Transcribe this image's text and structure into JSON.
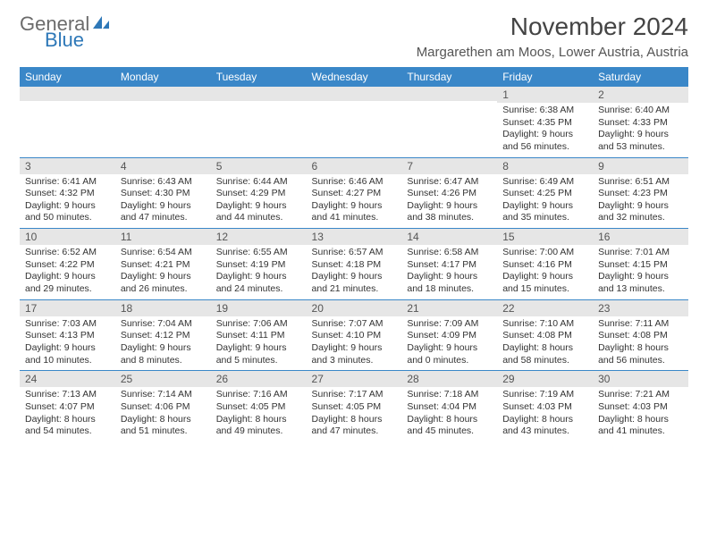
{
  "brand": {
    "general": "General",
    "blue": "Blue"
  },
  "header": {
    "title": "November 2024",
    "location": "Margarethen am Moos, Lower Austria, Austria"
  },
  "theme": {
    "header_bg": "#3a87c8",
    "header_text": "#ffffff",
    "daynum_bg": "#e6e6e6",
    "row_border": "#3a87c8",
    "text_color": "#333333",
    "title_color": "#444444",
    "location_color": "#555555",
    "title_fontsize": 28,
    "location_fontsize": 15,
    "header_fontsize": 12,
    "body_fontsize": 10.5
  },
  "columns": [
    "Sunday",
    "Monday",
    "Tuesday",
    "Wednesday",
    "Thursday",
    "Friday",
    "Saturday"
  ],
  "weeks": [
    [
      {
        "n": "",
        "sunrise": "",
        "sunset": "",
        "daylight": ""
      },
      {
        "n": "",
        "sunrise": "",
        "sunset": "",
        "daylight": ""
      },
      {
        "n": "",
        "sunrise": "",
        "sunset": "",
        "daylight": ""
      },
      {
        "n": "",
        "sunrise": "",
        "sunset": "",
        "daylight": ""
      },
      {
        "n": "",
        "sunrise": "",
        "sunset": "",
        "daylight": ""
      },
      {
        "n": "1",
        "sunrise": "Sunrise: 6:38 AM",
        "sunset": "Sunset: 4:35 PM",
        "daylight": "Daylight: 9 hours and 56 minutes."
      },
      {
        "n": "2",
        "sunrise": "Sunrise: 6:40 AM",
        "sunset": "Sunset: 4:33 PM",
        "daylight": "Daylight: 9 hours and 53 minutes."
      }
    ],
    [
      {
        "n": "3",
        "sunrise": "Sunrise: 6:41 AM",
        "sunset": "Sunset: 4:32 PM",
        "daylight": "Daylight: 9 hours and 50 minutes."
      },
      {
        "n": "4",
        "sunrise": "Sunrise: 6:43 AM",
        "sunset": "Sunset: 4:30 PM",
        "daylight": "Daylight: 9 hours and 47 minutes."
      },
      {
        "n": "5",
        "sunrise": "Sunrise: 6:44 AM",
        "sunset": "Sunset: 4:29 PM",
        "daylight": "Daylight: 9 hours and 44 minutes."
      },
      {
        "n": "6",
        "sunrise": "Sunrise: 6:46 AM",
        "sunset": "Sunset: 4:27 PM",
        "daylight": "Daylight: 9 hours and 41 minutes."
      },
      {
        "n": "7",
        "sunrise": "Sunrise: 6:47 AM",
        "sunset": "Sunset: 4:26 PM",
        "daylight": "Daylight: 9 hours and 38 minutes."
      },
      {
        "n": "8",
        "sunrise": "Sunrise: 6:49 AM",
        "sunset": "Sunset: 4:25 PM",
        "daylight": "Daylight: 9 hours and 35 minutes."
      },
      {
        "n": "9",
        "sunrise": "Sunrise: 6:51 AM",
        "sunset": "Sunset: 4:23 PM",
        "daylight": "Daylight: 9 hours and 32 minutes."
      }
    ],
    [
      {
        "n": "10",
        "sunrise": "Sunrise: 6:52 AM",
        "sunset": "Sunset: 4:22 PM",
        "daylight": "Daylight: 9 hours and 29 minutes."
      },
      {
        "n": "11",
        "sunrise": "Sunrise: 6:54 AM",
        "sunset": "Sunset: 4:21 PM",
        "daylight": "Daylight: 9 hours and 26 minutes."
      },
      {
        "n": "12",
        "sunrise": "Sunrise: 6:55 AM",
        "sunset": "Sunset: 4:19 PM",
        "daylight": "Daylight: 9 hours and 24 minutes."
      },
      {
        "n": "13",
        "sunrise": "Sunrise: 6:57 AM",
        "sunset": "Sunset: 4:18 PM",
        "daylight": "Daylight: 9 hours and 21 minutes."
      },
      {
        "n": "14",
        "sunrise": "Sunrise: 6:58 AM",
        "sunset": "Sunset: 4:17 PM",
        "daylight": "Daylight: 9 hours and 18 minutes."
      },
      {
        "n": "15",
        "sunrise": "Sunrise: 7:00 AM",
        "sunset": "Sunset: 4:16 PM",
        "daylight": "Daylight: 9 hours and 15 minutes."
      },
      {
        "n": "16",
        "sunrise": "Sunrise: 7:01 AM",
        "sunset": "Sunset: 4:15 PM",
        "daylight": "Daylight: 9 hours and 13 minutes."
      }
    ],
    [
      {
        "n": "17",
        "sunrise": "Sunrise: 7:03 AM",
        "sunset": "Sunset: 4:13 PM",
        "daylight": "Daylight: 9 hours and 10 minutes."
      },
      {
        "n": "18",
        "sunrise": "Sunrise: 7:04 AM",
        "sunset": "Sunset: 4:12 PM",
        "daylight": "Daylight: 9 hours and 8 minutes."
      },
      {
        "n": "19",
        "sunrise": "Sunrise: 7:06 AM",
        "sunset": "Sunset: 4:11 PM",
        "daylight": "Daylight: 9 hours and 5 minutes."
      },
      {
        "n": "20",
        "sunrise": "Sunrise: 7:07 AM",
        "sunset": "Sunset: 4:10 PM",
        "daylight": "Daylight: 9 hours and 3 minutes."
      },
      {
        "n": "21",
        "sunrise": "Sunrise: 7:09 AM",
        "sunset": "Sunset: 4:09 PM",
        "daylight": "Daylight: 9 hours and 0 minutes."
      },
      {
        "n": "22",
        "sunrise": "Sunrise: 7:10 AM",
        "sunset": "Sunset: 4:08 PM",
        "daylight": "Daylight: 8 hours and 58 minutes."
      },
      {
        "n": "23",
        "sunrise": "Sunrise: 7:11 AM",
        "sunset": "Sunset: 4:08 PM",
        "daylight": "Daylight: 8 hours and 56 minutes."
      }
    ],
    [
      {
        "n": "24",
        "sunrise": "Sunrise: 7:13 AM",
        "sunset": "Sunset: 4:07 PM",
        "daylight": "Daylight: 8 hours and 54 minutes."
      },
      {
        "n": "25",
        "sunrise": "Sunrise: 7:14 AM",
        "sunset": "Sunset: 4:06 PM",
        "daylight": "Daylight: 8 hours and 51 minutes."
      },
      {
        "n": "26",
        "sunrise": "Sunrise: 7:16 AM",
        "sunset": "Sunset: 4:05 PM",
        "daylight": "Daylight: 8 hours and 49 minutes."
      },
      {
        "n": "27",
        "sunrise": "Sunrise: 7:17 AM",
        "sunset": "Sunset: 4:05 PM",
        "daylight": "Daylight: 8 hours and 47 minutes."
      },
      {
        "n": "28",
        "sunrise": "Sunrise: 7:18 AM",
        "sunset": "Sunset: 4:04 PM",
        "daylight": "Daylight: 8 hours and 45 minutes."
      },
      {
        "n": "29",
        "sunrise": "Sunrise: 7:19 AM",
        "sunset": "Sunset: 4:03 PM",
        "daylight": "Daylight: 8 hours and 43 minutes."
      },
      {
        "n": "30",
        "sunrise": "Sunrise: 7:21 AM",
        "sunset": "Sunset: 4:03 PM",
        "daylight": "Daylight: 8 hours and 41 minutes."
      }
    ]
  ]
}
